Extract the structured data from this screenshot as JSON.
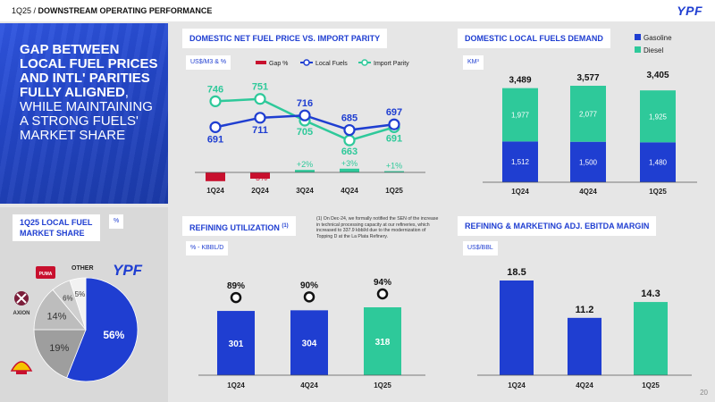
{
  "header": {
    "period": "1Q25",
    "separator": " / ",
    "section": "DOWNSTREAM OPERATING PERFORMANCE",
    "logo": "YPF"
  },
  "hero": {
    "bold_text": "GAP BETWEEN LOCAL FUEL PRICES AND INTL' PARITIES FULLY ALIGNED",
    "rest_text": ", WHILE MAINTAINING A STRONG FUELS' MARKET SHARE"
  },
  "page_number": "20",
  "colors": {
    "blue": "#1f3ed1",
    "green": "#2ec99a",
    "red": "#c8102e",
    "dark": "#333333",
    "gray": "#9e9e9e",
    "light": "#d9d9d9"
  },
  "chart_data": [
    {
      "id": "price_parity",
      "type": "line",
      "title": "DOMESTIC NET FUEL PRICE VS. IMPORT PARITY",
      "unit": "US$/M3 & %",
      "categories": [
        "1Q24",
        "2Q24",
        "3Q24",
        "4Q24",
        "1Q25"
      ],
      "series": [
        {
          "name": "Local Fuels",
          "values": [
            691,
            711,
            716,
            685,
            697
          ],
          "labels": [
            "691",
            "711",
            "716",
            "685",
            "697"
          ]
        },
        {
          "name": "Import Parity",
          "values": [
            746,
            751,
            705,
            663,
            691
          ],
          "labels": [
            "746",
            "751",
            "705",
            "663",
            "691"
          ]
        },
        {
          "name": "Gap %",
          "values": [
            -7,
            -5,
            2,
            3,
            1
          ],
          "labels": [
            "-7%",
            "-5%",
            "+2%",
            "+3%",
            "+1%"
          ]
        }
      ]
    },
    {
      "id": "fuels_demand",
      "type": "bar",
      "title": "DOMESTIC LOCAL FUELS DEMAND",
      "unit": "KM³",
      "categories": [
        "1Q24",
        "4Q24",
        "1Q25"
      ],
      "series": [
        {
          "name": "Gasoline",
          "values": [
            1512,
            1500,
            1480
          ]
        },
        {
          "name": "Diesel",
          "values": [
            1977,
            2077,
            1925
          ]
        }
      ],
      "totals": [
        "3,489",
        "3,577",
        "3,405"
      ],
      "value_labels": {
        "Gasoline": [
          "1,512",
          "1,500",
          "1,480"
        ],
        "Diesel": [
          "1,977",
          "2,077",
          "1,925"
        ]
      }
    },
    {
      "id": "market_share",
      "type": "pie",
      "title": "1Q25 LOCAL FUEL MARKET SHARE",
      "unit": "%",
      "slices": [
        {
          "name": "YPF",
          "value": 56,
          "label": "56%"
        },
        {
          "name": "Shell",
          "value": 19,
          "label": "19%"
        },
        {
          "name": "Axion",
          "value": 14,
          "label": "14%"
        },
        {
          "name": "Puma",
          "value": 6,
          "label": "6%"
        },
        {
          "name": "OTHER",
          "value": 5,
          "label": "5%"
        }
      ],
      "other_label": "OTHER",
      "brand_ypf": "YPF",
      "brand_axion": "AXION",
      "brand_puma": "PUMA"
    },
    {
      "id": "refining",
      "type": "bar",
      "title": "REFINING UTILIZATION",
      "title_note": "(1)",
      "unit": "% - KBBL/D",
      "note": "(1) On Dec-24, we formally notified the SEN of the increase in technical processing capacity at our refineries, which increased to 337.9 kbbl/d due to the modernization of Topping D at the La Plata Refinery.",
      "categories": [
        "1Q24",
        "4Q24",
        "1Q25"
      ],
      "values": [
        301,
        304,
        318
      ],
      "utilization": [
        "89%",
        "90%",
        "94%"
      ]
    },
    {
      "id": "ebitda_margin",
      "type": "bar",
      "title": "REFINING & MARKETING ADJ. EBITDA MARGIN",
      "unit": "US$/BBL",
      "categories": [
        "1Q24",
        "4Q24",
        "1Q25"
      ],
      "values": [
        18.5,
        11.2,
        14.3
      ],
      "labels": [
        "18.5",
        "11.2",
        "14.3"
      ]
    }
  ]
}
